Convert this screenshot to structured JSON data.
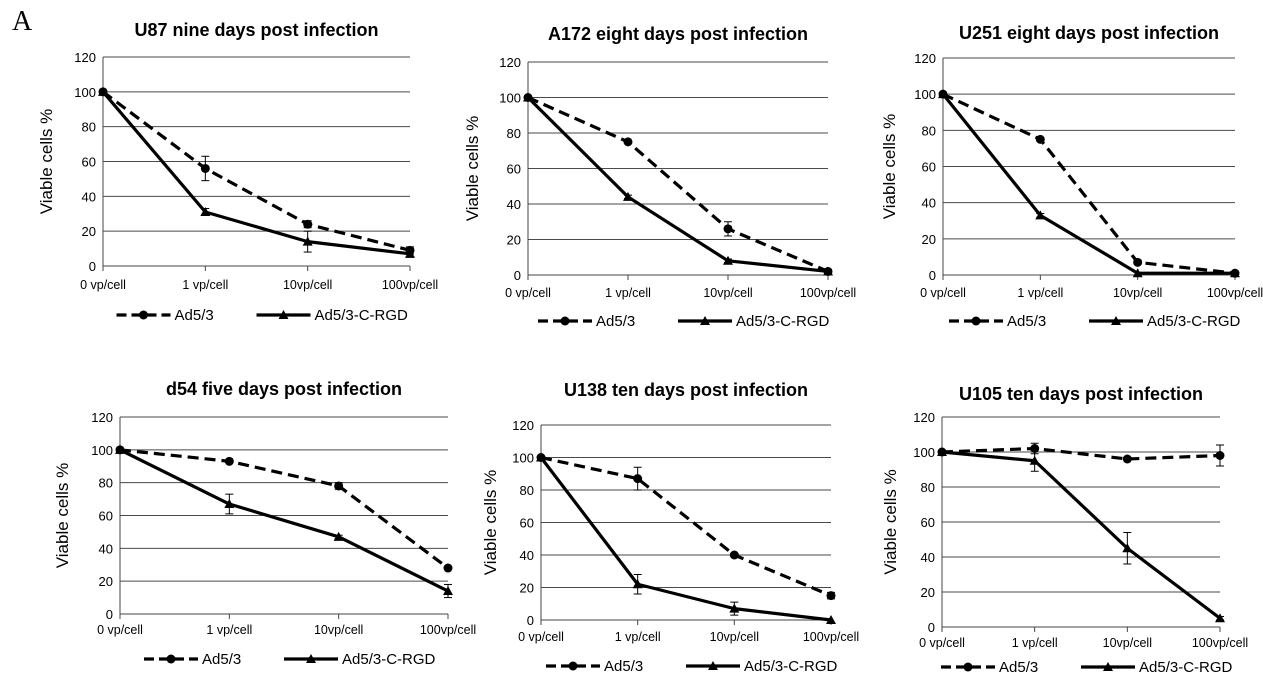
{
  "figure": {
    "panel_label": "A"
  },
  "chart_data": [
    {
      "type": "line",
      "title": "U87 nine days post infection",
      "ylabel": "Viable cells %",
      "categories": [
        "0 vp/cell",
        "1 vp/cell",
        "10vp/cell",
        "100vp/cell"
      ],
      "ylim": [
        0,
        120
      ],
      "yticks": [
        0,
        20,
        40,
        60,
        80,
        100,
        120
      ],
      "grid": true,
      "legend": "bottom",
      "series": [
        {
          "name": "Ad5/3",
          "values": [
            100,
            56,
            24,
            9
          ],
          "errors": [
            0,
            7,
            2,
            2
          ],
          "marker": "circle",
          "style": "dashed"
        },
        {
          "name": "Ad5/3-C-RGD",
          "values": [
            100,
            31,
            14,
            7
          ],
          "errors": [
            0,
            2,
            6,
            2
          ],
          "marker": "triangle",
          "style": "solid"
        }
      ]
    },
    {
      "type": "line",
      "title": "A172 eight days post infection",
      "ylabel": "Viable cells %",
      "categories": [
        "0 vp/cell",
        "1 vp/cell",
        "10vp/cell",
        "100vp/cell"
      ],
      "ylim": [
        0,
        120
      ],
      "yticks": [
        0,
        20,
        40,
        60,
        80,
        100,
        120
      ],
      "grid": true,
      "legend": "bottom",
      "series": [
        {
          "name": "Ad5/3",
          "values": [
            100,
            75,
            26,
            2
          ],
          "errors": [
            0,
            0,
            4,
            1
          ],
          "marker": "circle",
          "style": "dashed"
        },
        {
          "name": "Ad5/3-C-RGD",
          "values": [
            100,
            44,
            8,
            2
          ],
          "errors": [
            0,
            1,
            1,
            1
          ],
          "marker": "triangle",
          "style": "solid"
        }
      ]
    },
    {
      "type": "line",
      "title": "U251 eight days post infection",
      "ylabel": "Viable cells %",
      "categories": [
        "0 vp/cell",
        "1 vp/cell",
        "10vp/cell",
        "100vp/cell"
      ],
      "ylim": [
        0,
        120
      ],
      "yticks": [
        0,
        20,
        40,
        60,
        80,
        100,
        120
      ],
      "grid": true,
      "legend": "bottom",
      "series": [
        {
          "name": "Ad5/3",
          "values": [
            100,
            75,
            7,
            1
          ],
          "errors": [
            0,
            0,
            1,
            0
          ],
          "marker": "circle",
          "style": "dashed"
        },
        {
          "name": "Ad5/3-C-RGD",
          "values": [
            100,
            33,
            1,
            1
          ],
          "errors": [
            0,
            1,
            0,
            0
          ],
          "marker": "triangle",
          "style": "solid"
        }
      ]
    },
    {
      "type": "line",
      "title": "d54 five days post infection",
      "ylabel": "Viable cells %",
      "categories": [
        "0 vp/cell",
        "1 vp/cell",
        "10vp/cell",
        "100vp/cell"
      ],
      "ylim": [
        0,
        120
      ],
      "yticks": [
        0,
        20,
        40,
        60,
        80,
        100,
        120
      ],
      "grid": true,
      "legend": "bottom",
      "series": [
        {
          "name": "Ad5/3",
          "values": [
            100,
            93,
            78,
            28
          ],
          "errors": [
            0,
            0,
            2,
            1
          ],
          "marker": "circle",
          "style": "dashed"
        },
        {
          "name": "Ad5/3-C-RGD",
          "values": [
            100,
            67,
            47,
            14
          ],
          "errors": [
            0,
            6,
            1,
            4
          ],
          "marker": "triangle",
          "style": "solid"
        }
      ]
    },
    {
      "type": "line",
      "title": "U138 ten days post infection",
      "ylabel": "Viable cells %",
      "categories": [
        "0 vp/cell",
        "1 vp/cell",
        "10vp/cell",
        "100vp/cell"
      ],
      "ylim": [
        0,
        120
      ],
      "yticks": [
        0,
        20,
        40,
        60,
        80,
        100,
        120
      ],
      "grid": true,
      "legend": "bottom",
      "series": [
        {
          "name": "Ad5/3",
          "values": [
            100,
            87,
            40,
            15
          ],
          "errors": [
            0,
            7,
            1,
            2
          ],
          "marker": "circle",
          "style": "dashed"
        },
        {
          "name": "Ad5/3-C-RGD",
          "values": [
            100,
            22,
            7,
            0
          ],
          "errors": [
            0,
            6,
            4,
            0
          ],
          "marker": "triangle",
          "style": "solid"
        }
      ]
    },
    {
      "type": "line",
      "title": "U105 ten days post infection",
      "ylabel": "Viable cells %",
      "categories": [
        "0 vp/cell",
        "1 vp/cell",
        "10vp/cell",
        "100vp/cell"
      ],
      "ylim": [
        0,
        120
      ],
      "yticks": [
        0,
        20,
        40,
        60,
        80,
        100,
        120
      ],
      "grid": true,
      "legend": "bottom",
      "series": [
        {
          "name": "Ad5/3",
          "values": [
            100,
            102,
            96,
            98
          ],
          "errors": [
            0,
            3,
            1,
            6
          ],
          "marker": "circle",
          "style": "dashed"
        },
        {
          "name": "Ad5/3-C-RGD",
          "values": [
            100,
            95,
            45,
            5
          ],
          "errors": [
            0,
            6,
            9,
            1
          ],
          "marker": "triangle",
          "style": "solid"
        }
      ]
    }
  ]
}
